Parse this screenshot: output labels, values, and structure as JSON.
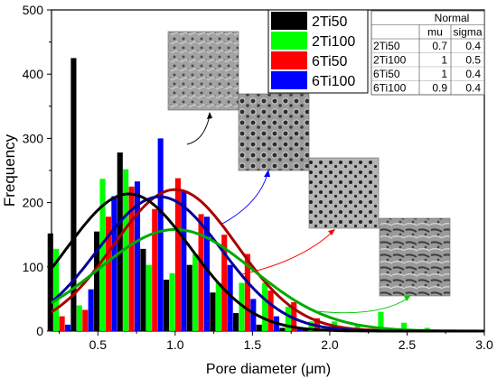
{
  "chart_data": {
    "type": "bar",
    "xlabel": "Pore diameter (μm)",
    "ylabel": "Frequency",
    "xlim": [
      0.2,
      3.0
    ],
    "ylim": [
      0,
      500
    ],
    "x_ticks": [
      "0.5",
      "1.0",
      "1.5",
      "2.0",
      "2.5",
      "3.0"
    ],
    "y_ticks": [
      "0",
      "100",
      "200",
      "300",
      "400",
      "500"
    ],
    "bin_width": 0.15,
    "legend_position": "top-center",
    "series": [
      {
        "name": "2Ti50",
        "color": "#000000",
        "bin_centers": [
          0.25,
          0.4,
          0.55,
          0.7,
          0.85,
          1.0,
          1.15,
          1.3,
          1.45,
          1.6,
          1.75,
          1.9,
          2.05
        ],
        "values": [
          152,
          425,
          155,
          278,
          128,
          80,
          103,
          60,
          28,
          10,
          5,
          2,
          1
        ],
        "fit": {
          "mu": 0.7,
          "sigma": 0.4
        }
      },
      {
        "name": "2Ti100",
        "color": "#00ff00",
        "bin_centers": [
          0.25,
          0.4,
          0.55,
          0.7,
          0.85,
          1.0,
          1.15,
          1.3,
          1.45,
          1.6,
          1.75,
          1.9,
          2.05,
          2.2,
          2.35,
          2.5,
          2.65
        ],
        "values": [
          128,
          40,
          237,
          252,
          103,
          90,
          120,
          75,
          75,
          75,
          38,
          15,
          15,
          10,
          30,
          13,
          5
        ],
        "fit": {
          "mu": 1,
          "sigma": 0.5
        }
      },
      {
        "name": "6Ti50",
        "color": "#ff0000",
        "bin_centers": [
          0.25,
          0.4,
          0.55,
          0.7,
          0.85,
          1.0,
          1.15,
          1.3,
          1.45,
          1.6,
          1.75,
          1.9,
          2.05
        ],
        "values": [
          23,
          33,
          178,
          225,
          190,
          238,
          182,
          150,
          120,
          63,
          45,
          20,
          5
        ],
        "fit": {
          "mu": 1,
          "sigma": 0.4
        }
      },
      {
        "name": "6Ti100",
        "color": "#0000ff",
        "bin_centers": [
          0.25,
          0.4,
          0.55,
          0.7,
          0.85,
          1.0,
          1.15,
          1.3,
          1.45,
          1.6,
          1.75,
          1.9,
          2.05
        ],
        "values": [
          10,
          65,
          210,
          233,
          300,
          217,
          178,
          103,
          50,
          23,
          5,
          3,
          1
        ],
        "fit": {
          "mu": 0.9,
          "sigma": 0.4
        }
      }
    ],
    "fit_table": {
      "title": "Normal",
      "columns": [
        "",
        "mu",
        "sigma"
      ],
      "rows": [
        [
          "2Ti50",
          "0.7",
          "0.4"
        ],
        [
          "2Ti100",
          "1",
          "0.5"
        ],
        [
          "6Ti50",
          "1",
          "0.4"
        ],
        [
          "6Ti100",
          "0.9",
          "0.4"
        ]
      ]
    }
  }
}
